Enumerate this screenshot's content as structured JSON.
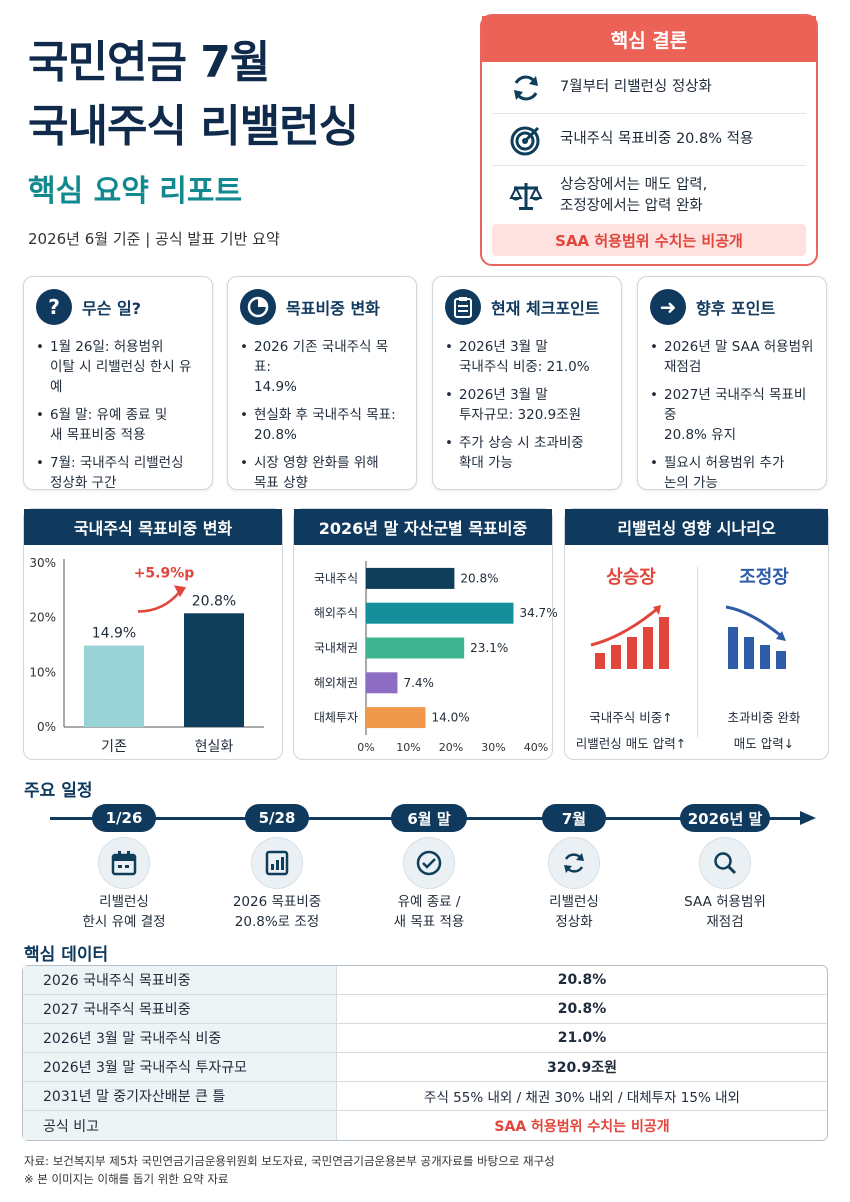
{
  "header": {
    "title_line1": "국민연금 7월",
    "title_line2": "국내주식 리밸런싱",
    "subtitle": "핵심 요약 리포트",
    "meta": "2026년 6월 기준  |  공식 발표 기반 요약"
  },
  "conclusion": {
    "title": "핵심 결론",
    "items": [
      {
        "icon": "refresh-icon",
        "text": "7월부터 리밸런싱 정상화"
      },
      {
        "icon": "target-icon",
        "text": "국내주식 목표비중 20.8% 적용"
      },
      {
        "icon": "scale-icon",
        "text": "상승장에서는 매도 압력,\n조정장에서는 압력 완화"
      }
    ],
    "footer": "SAA 허용범위 수치는 비공개"
  },
  "cards": [
    {
      "icon": "question-icon",
      "title": "무슨 일?",
      "items": [
        "1월 26일: 허용범위\n이탈 시 리밸런싱 한시 유예",
        "6월 말: 유예 종료 및\n새 목표비중 적용",
        "7월: 국내주식 리밸런싱\n정상화 구간"
      ]
    },
    {
      "icon": "pie-icon",
      "title": "목표비중 변화",
      "items": [
        "2026 기존 국내주식 목표:\n14.9%",
        "현실화 후 국내주식 목표:\n20.8%",
        "시장 영향 완화를 위해\n목표 상향"
      ]
    },
    {
      "icon": "clipboard-icon",
      "title": "현재 체크포인트",
      "items": [
        "2026년 3월 말\n국내주식 비중: 21.0%",
        "2026년 3월 말\n투자규모: 320.9조원",
        "주가 상승 시 초과비중\n확대 가능"
      ]
    },
    {
      "icon": "arrow-right-icon",
      "title": "향후 포인트",
      "items": [
        "2026년 말 SAA 허용범위\n재점검",
        "2027년 국내주식 목표비중\n20.8% 유지",
        "필요시 허용범위 추가\n논의 가능"
      ]
    }
  ],
  "chart_data": [
    {
      "type": "bar",
      "title": "국내주식 목표비중 변화",
      "categories": [
        "기존",
        "현실화"
      ],
      "values": [
        14.9,
        20.8
      ],
      "value_labels": [
        "14.9%",
        "20.8%"
      ],
      "y_ticks": [
        "0%",
        "10%",
        "20%",
        "30%"
      ],
      "ylim": [
        0,
        30
      ],
      "annotation": "+5.9%p",
      "colors": [
        "#9ad3d6",
        "#0f3e5a"
      ]
    },
    {
      "type": "bar",
      "orientation": "horizontal",
      "title": "2026년 말 자산군별 목표비중",
      "categories": [
        "국내주식",
        "해외주식",
        "국내채권",
        "해외채권",
        "대체투자"
      ],
      "values": [
        20.8,
        34.7,
        23.1,
        7.4,
        14.0
      ],
      "value_labels": [
        "20.8%",
        "34.7%",
        "23.1%",
        "7.4%",
        "14.0%"
      ],
      "x_ticks": [
        "0%",
        "10%",
        "20%",
        "30%",
        "40%"
      ],
      "xlim": [
        0,
        40
      ],
      "colors": [
        "#0f3e5a",
        "#15909a",
        "#3fb58f",
        "#8d6cc4",
        "#f0994c"
      ]
    }
  ],
  "scenario": {
    "title": "리밸런싱 영향 시나리오",
    "up": {
      "label": "상승장",
      "line1": "국내주식 비중↑",
      "line2": "리밸런싱 매도 압력↑",
      "color": "#e2453b"
    },
    "down": {
      "label": "조정장",
      "line1": "초과비중 완화",
      "line2": "매도 압력↓",
      "color": "#2e5ca8"
    }
  },
  "timeline": {
    "title": "주요 일정",
    "items": [
      {
        "date": "1/26",
        "icon": "calendar-icon",
        "text": "리밸런싱\n한시 유예 결정"
      },
      {
        "date": "5/28",
        "icon": "report-chart-icon",
        "text": "2026 목표비중\n20.8%로 조정"
      },
      {
        "date": "6월 말",
        "icon": "check-circle-icon",
        "text": "유예 종료 /\n새 목표 적용"
      },
      {
        "date": "7월",
        "icon": "refresh-icon",
        "text": "리밸런싱\n정상화"
      },
      {
        "date": "2026년 말",
        "icon": "magnifier-icon",
        "text": "SAA 허용범위\n재점검"
      }
    ]
  },
  "table": {
    "title": "핵심 데이터",
    "rows": [
      {
        "k": "2026 국내주식 목표비중",
        "v": "20.8%"
      },
      {
        "k": "2027 국내주식 목표비중",
        "v": "20.8%"
      },
      {
        "k": "2026년 3월 말 국내주식 비중",
        "v": "21.0%"
      },
      {
        "k": "2026년 3월 말 국내주식 투자규모",
        "v": "320.9조원"
      },
      {
        "k": "2031년 말 중기자산배분 큰 틀",
        "v": "주식 55% 내외 / 채권 30% 내외 / 대체투자 15% 내외"
      },
      {
        "k": "공식 비고",
        "v": "SAA 허용범위 수치는 비공개"
      }
    ]
  },
  "footer": {
    "source": "자료: 보건복지부 제5차 국민연금기금운용위원회 보도자료, 국민연금기금운용본부 공개자료를 바탕으로 재구성",
    "note": "※ 본 이미지는 이해를 돕기 위한 요약 자료"
  }
}
